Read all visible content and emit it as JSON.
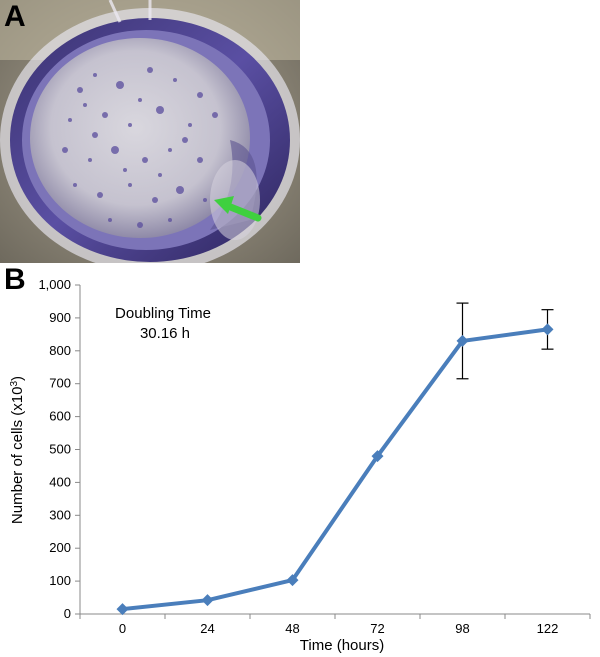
{
  "panel_a": {
    "label": "A"
  },
  "panel_b": {
    "label": "B"
  },
  "chart_data": {
    "type": "line",
    "title": "",
    "xlabel": "Time (hours)",
    "ylabel_prefix": "Number of cells (x10",
    "ylabel_sup": "3",
    "ylabel_suffix": ")",
    "x": [
      "0",
      "24",
      "48",
      "72",
      "98",
      "122"
    ],
    "series": [
      {
        "values": [
          15,
          42,
          103,
          480,
          830,
          865
        ],
        "error": [
          0,
          0,
          0,
          0,
          115,
          60
        ]
      }
    ],
    "ylim": [
      0,
      1000
    ],
    "yticks": [
      "0",
      "100",
      "200",
      "300",
      "400",
      "500",
      "600",
      "700",
      "800",
      "900",
      "1,000"
    ],
    "annotation": {
      "line1": "Doubling Time",
      "line2": "30.16 h"
    },
    "line_color": "#4a7ebb",
    "grid": false,
    "legend": "none"
  }
}
